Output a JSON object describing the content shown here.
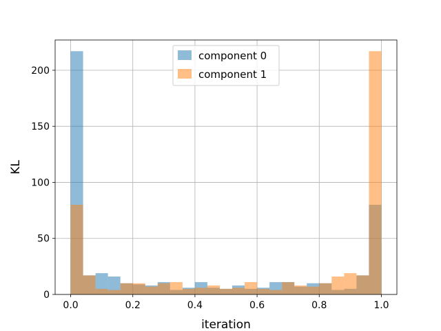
{
  "chart_data": {
    "type": "bar",
    "subtype": "histogram",
    "title": "",
    "xlabel": "iteration",
    "ylabel": "KL",
    "xlim": [
      -0.05,
      1.05
    ],
    "ylim": [
      0,
      227
    ],
    "xticks": [
      0.0,
      0.2,
      0.4,
      0.6,
      0.8,
      1.0
    ],
    "xtick_labels": [
      "0.0",
      "0.2",
      "0.4",
      "0.6",
      "0.8",
      "1.0"
    ],
    "yticks": [
      0,
      50,
      100,
      150,
      200
    ],
    "ytick_labels": [
      "0",
      "50",
      "100",
      "150",
      "200"
    ],
    "grid": true,
    "legend_position": "upper center",
    "bin_edges": [
      0.0,
      0.04,
      0.08,
      0.12,
      0.16,
      0.2,
      0.24,
      0.28,
      0.32,
      0.36,
      0.4,
      0.44,
      0.48,
      0.52,
      0.56,
      0.6,
      0.64,
      0.68,
      0.72,
      0.76,
      0.8,
      0.84,
      0.88,
      0.92,
      0.96,
      1.0
    ],
    "series": [
      {
        "name": "component 0",
        "color": "#1f77b4",
        "alpha": 0.5,
        "values": [
          217,
          17,
          19,
          16,
          10,
          9,
          8,
          11,
          4,
          6,
          11,
          6,
          5,
          8,
          5,
          6,
          11,
          11,
          7,
          10,
          10,
          4,
          5,
          17,
          80
        ]
      },
      {
        "name": "component 1",
        "color": "#ff7f0e",
        "alpha": 0.5,
        "values": [
          80,
          17,
          5,
          4,
          10,
          10,
          7,
          10,
          11,
          5,
          6,
          8,
          5,
          6,
          11,
          5,
          4,
          11,
          8,
          7,
          10,
          16,
          19,
          17,
          217
        ]
      }
    ]
  }
}
